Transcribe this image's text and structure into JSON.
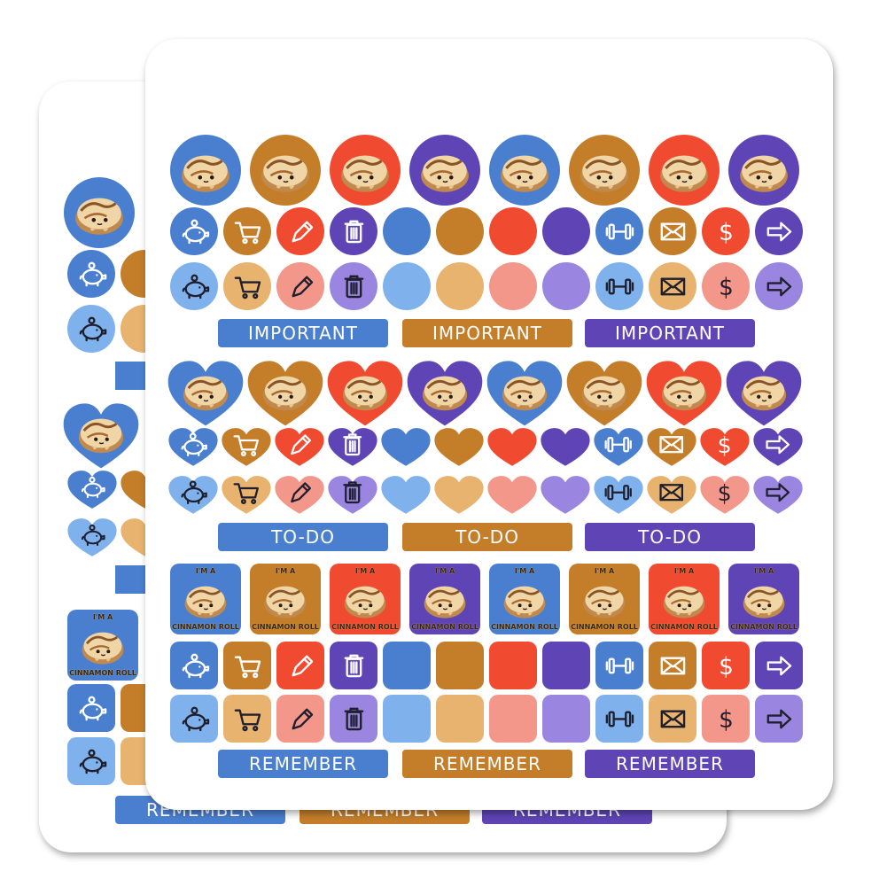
{
  "colors": {
    "dark": [
      "#4a7fd0",
      "#c47e2a",
      "#f04a30",
      "#5e44b4",
      "#4a7fd0",
      "#c47e2a",
      "#f04a30",
      "#5e44b4"
    ],
    "light": [
      "#7fb2ec",
      "#e8b36e",
      "#f2978a",
      "#9a86e0",
      "#7fb2ec",
      "#e8b36e",
      "#f2978a",
      "#9a86e0"
    ],
    "label_dark": [
      "#4a7fd0",
      "#c47e2a",
      "#5e44b4"
    ]
  },
  "icons": [
    "piggy-bank-icon",
    "cart-icon",
    "pencil-icon",
    "trash-icon",
    "blank",
    "blank",
    "blank",
    "blank",
    "dumbbell-icon",
    "envelope-icon",
    "dollar-icon",
    "arrow-right-icon"
  ],
  "labels": {
    "important": [
      "IMPORTANT",
      "IMPORTANT",
      "IMPORTANT"
    ],
    "todo": [
      "TO-DO",
      "TO-DO",
      "TO-DO"
    ],
    "remember": [
      "REMEMBER",
      "REMEMBER",
      "REMEMBER"
    ]
  },
  "roll_sticker": {
    "top_text": "I'M A",
    "bottom_text": "CINNAMON ROLL"
  },
  "back_sheet_labels": {
    "remember": [
      "REMEMBER",
      "REMEMBER",
      "REMEMBER"
    ]
  }
}
